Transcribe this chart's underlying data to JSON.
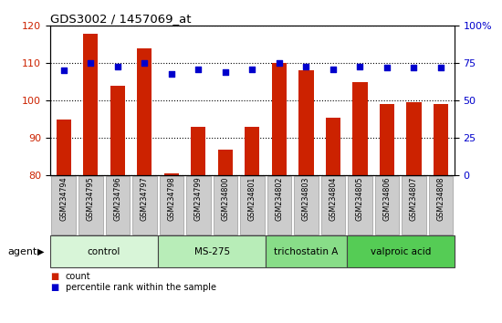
{
  "title": "GDS3002 / 1457069_at",
  "categories": [
    "GSM234794",
    "GSM234795",
    "GSM234796",
    "GSM234797",
    "GSM234798",
    "GSM234799",
    "GSM234800",
    "GSM234801",
    "GSM234802",
    "GSM234803",
    "GSM234804",
    "GSM234805",
    "GSM234806",
    "GSM234807",
    "GSM234808"
  ],
  "counts": [
    95,
    118,
    104,
    114,
    80.5,
    93,
    87,
    93,
    110,
    108,
    95.5,
    105,
    99,
    99.5,
    99
  ],
  "percentiles": [
    70,
    75,
    73,
    75,
    68,
    71,
    69,
    71,
    75,
    73,
    71,
    73,
    72,
    72,
    72
  ],
  "bar_color": "#cc2200",
  "dot_color": "#0000cc",
  "ylim_left": [
    80,
    120
  ],
  "ylim_right": [
    0,
    100
  ],
  "yticks_left": [
    80,
    90,
    100,
    110,
    120
  ],
  "yticks_right": [
    0,
    25,
    50,
    75,
    100
  ],
  "groups": [
    {
      "label": "control",
      "start": 0,
      "end": 4,
      "color": "#d8f5d8"
    },
    {
      "label": "MS-275",
      "start": 4,
      "end": 8,
      "color": "#b8edb8"
    },
    {
      "label": "trichostatin A",
      "start": 8,
      "end": 11,
      "color": "#88dd88"
    },
    {
      "label": "valproic acid",
      "start": 11,
      "end": 15,
      "color": "#55cc55"
    }
  ],
  "agent_label": "agent",
  "legend_count_color": "#cc2200",
  "legend_dot_color": "#0000cc",
  "background_color": "#ffffff",
  "tick_label_bg": "#cccccc",
  "tick_label_edge": "#999999"
}
